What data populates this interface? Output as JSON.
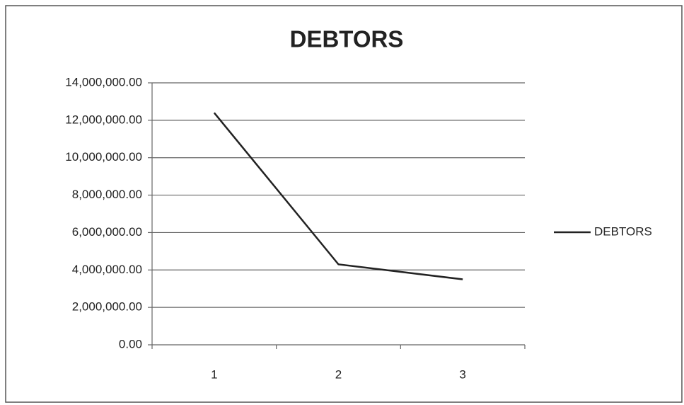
{
  "chart_data": {
    "type": "line",
    "title": "DEBTORS",
    "categories": [
      "1",
      "2",
      "3"
    ],
    "series": [
      {
        "name": "DEBTORS",
        "color": "#222222",
        "values": [
          12400000,
          4300000,
          3500000
        ]
      }
    ],
    "ylim": [
      0,
      14000000
    ],
    "yticks": [
      {
        "value": 0,
        "label": "0.00"
      },
      {
        "value": 2000000,
        "label": "2,000,000.00"
      },
      {
        "value": 4000000,
        "label": "4,000,000.00"
      },
      {
        "value": 6000000,
        "label": "6,000,000.00"
      },
      {
        "value": 8000000,
        "label": "8,000,000.00"
      },
      {
        "value": 10000000,
        "label": "10,000,000.00"
      },
      {
        "value": 12000000,
        "label": "12,000,000.00"
      },
      {
        "value": 14000000,
        "label": "14,000,000.00"
      }
    ],
    "grid": true,
    "legend": "right"
  }
}
